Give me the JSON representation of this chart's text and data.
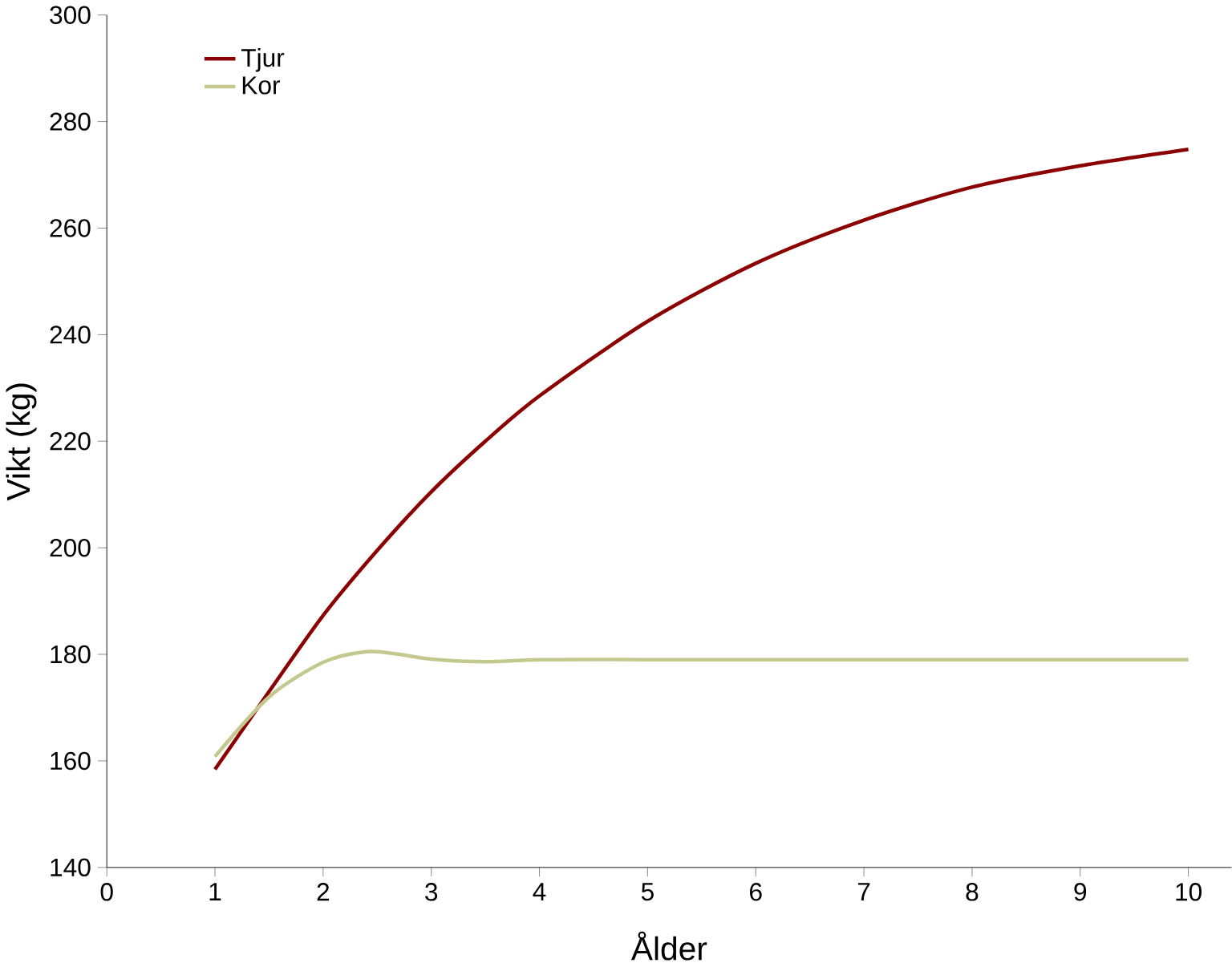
{
  "chart_data": {
    "type": "line",
    "xlabel": "Ålder",
    "ylabel": "Vikt (kg)",
    "xlim": [
      0,
      10.4
    ],
    "ylim": [
      140,
      300
    ],
    "xticks": [
      0,
      1,
      2,
      3,
      4,
      5,
      6,
      7,
      8,
      9,
      10
    ],
    "yticks": [
      140,
      160,
      180,
      200,
      220,
      240,
      260,
      280,
      300
    ],
    "grid": false,
    "legend": "top left",
    "marker": "none",
    "line_style": "solid",
    "series": [
      {
        "name": "Tjur",
        "color": "#8b0000",
        "x": [
          1,
          1.5,
          2,
          2.5,
          3,
          3.5,
          4,
          5,
          6,
          7,
          8,
          9,
          10
        ],
        "values": [
          158.4,
          173,
          187.3,
          199.5,
          210.5,
          220,
          228.5,
          242.5,
          253.4,
          261.5,
          267.7,
          271.7,
          274.8
        ]
      },
      {
        "name": "Kor",
        "color": "#c3c98e",
        "x": [
          1,
          1.5,
          2,
          2.4,
          2.7,
          3,
          3.5,
          4,
          5,
          6,
          7,
          8,
          9,
          10
        ],
        "values": [
          160.8,
          172,
          178.5,
          180.5,
          180,
          179.1,
          178.6,
          179,
          179,
          179,
          179,
          179,
          179,
          179
        ]
      }
    ]
  }
}
